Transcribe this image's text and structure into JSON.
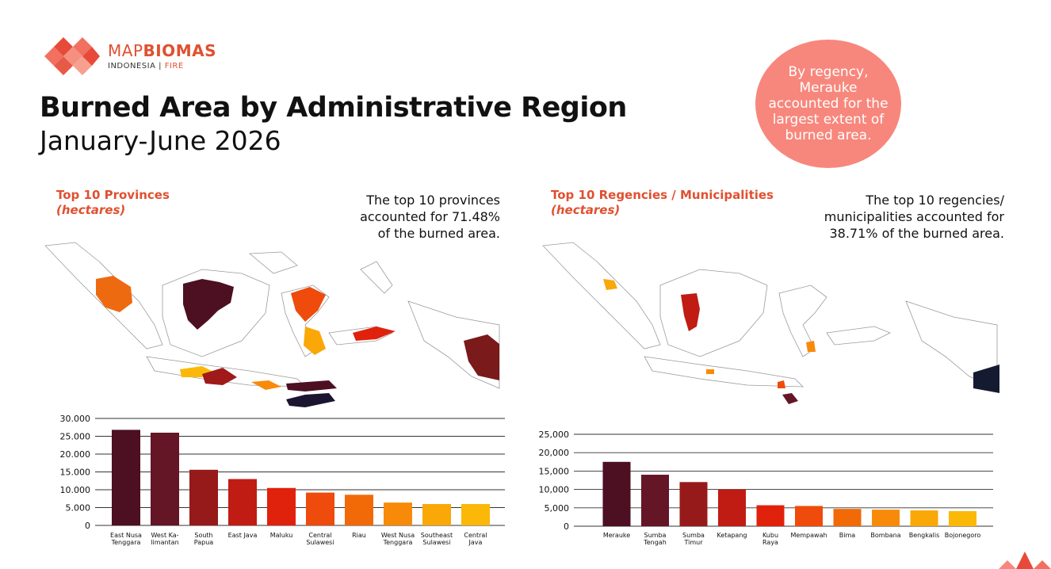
{
  "brand": {
    "name_thin": "MAP",
    "name_bold": "BIOMAS",
    "sub_left": "INDONESIA",
    "sub_sep": "|",
    "sub_right": "FIRE"
  },
  "page": {
    "title": "Burned Area by Administrative Region",
    "subtitle": "January-June 2026"
  },
  "callout": {
    "text": "By regency, Merauke accounted for the largest extent of burned area."
  },
  "provinces": {
    "heading": "Top 10 Provinces",
    "unit": "(hectares)",
    "note_lines": [
      "The top 10 provinces",
      "accounted for 71.48%",
      "of the burned area."
    ]
  },
  "regencies": {
    "heading": "Top 10 Regencies / Municipalities",
    "unit": "(hectares)",
    "note_lines": [
      "The top 10 regencies/",
      "municipalities accounted for",
      "38.71% of the burned area."
    ]
  },
  "colors": {
    "accent": "#e05030",
    "bubble": "#f7877c",
    "bars": [
      "#4d0f22",
      "#641526",
      "#961a1a",
      "#c01c14",
      "#e0220c",
      "#ee4b0c",
      "#f26a08",
      "#f88a0a",
      "#faa708",
      "#fbb808"
    ]
  },
  "chart_data": [
    {
      "type": "bar",
      "categories": [
        [
          "East Nusa",
          "Tenggara"
        ],
        [
          "West Ka-",
          "limantan"
        ],
        [
          "South",
          "Papua"
        ],
        [
          "East Java"
        ],
        [
          "Maluku"
        ],
        [
          "Central",
          "Sulawesi"
        ],
        [
          "Riau"
        ],
        [
          "West Nusa",
          "Tenggara"
        ],
        [
          "Southeast",
          "Sulawesi"
        ],
        [
          "Central",
          "Java"
        ]
      ],
      "values": [
        26800,
        26000,
        15600,
        13000,
        10500,
        9200,
        8600,
        6400,
        6000,
        6000
      ],
      "yticks": [
        "30.000",
        "25.000",
        "20.000",
        "15.000",
        "10.000",
        "5.000",
        "0"
      ],
      "ylim": [
        0,
        30000
      ],
      "grid": true
    },
    {
      "type": "bar",
      "categories": [
        [
          "Merauke"
        ],
        [
          "Sumba",
          "Tengah"
        ],
        [
          "Sumba",
          "Timur"
        ],
        [
          "Ketapang"
        ],
        [
          "Kubu",
          "Raya"
        ],
        [
          "Mempawah"
        ],
        [
          "Bima"
        ],
        [
          "Bombana"
        ],
        [
          "Bengkalis"
        ],
        [
          "Bojonegoro"
        ]
      ],
      "values": [
        17500,
        14000,
        12000,
        10000,
        5700,
        5500,
        4700,
        4500,
        4300,
        4100
      ],
      "yticks": [
        "25,000",
        "20,000",
        "15,000",
        "10,000",
        "5,000",
        "0"
      ],
      "ylim": [
        0,
        25000
      ],
      "grid": true
    }
  ]
}
